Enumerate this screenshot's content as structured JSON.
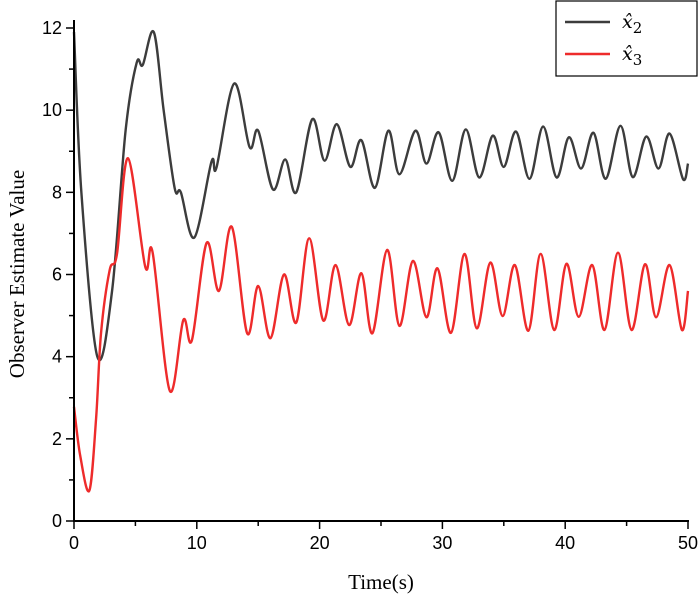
{
  "chart_data": {
    "type": "line",
    "title": "",
    "xlabel": "Time(s)",
    "ylabel": "Observer Estimate Value",
    "xlim": [
      0,
      50
    ],
    "ylim": [
      0,
      12
    ],
    "xticks": [
      0,
      10,
      20,
      30,
      40,
      50
    ],
    "yticks": [
      0,
      2,
      4,
      6,
      8,
      10,
      12
    ],
    "grid": false,
    "legend_position": "top-right",
    "series": [
      {
        "name": "x̂₂",
        "label_base": "x̂",
        "label_sub": "2",
        "color": "#3c3c3c",
        "points": [
          [
            0,
            11.9
          ],
          [
            0.6,
            8.0
          ],
          [
            1.9,
            4.0
          ],
          [
            3.1,
            5.6
          ],
          [
            4.2,
            9.5
          ],
          [
            5.1,
            11.15
          ],
          [
            5.6,
            11.1
          ],
          [
            6.5,
            11.9
          ],
          [
            7.3,
            10.0
          ],
          [
            8.2,
            8.1
          ],
          [
            8.7,
            8.0
          ],
          [
            9.8,
            6.9
          ],
          [
            11.2,
            8.75
          ],
          [
            11.6,
            8.6
          ],
          [
            13.05,
            10.65
          ],
          [
            14.3,
            9.1
          ],
          [
            15.0,
            9.5
          ],
          [
            16.2,
            8.07
          ],
          [
            17.2,
            8.8
          ],
          [
            18.1,
            8.0
          ],
          [
            19.4,
            9.78
          ],
          [
            20.4,
            8.77
          ],
          [
            21.4,
            9.66
          ],
          [
            22.5,
            8.62
          ],
          [
            23.4,
            9.27
          ],
          [
            24.5,
            8.11
          ],
          [
            25.6,
            9.5
          ],
          [
            26.5,
            8.44
          ],
          [
            27.8,
            9.5
          ],
          [
            28.7,
            8.7
          ],
          [
            29.7,
            9.46
          ],
          [
            30.8,
            8.28
          ],
          [
            31.9,
            9.53
          ],
          [
            33.0,
            8.36
          ],
          [
            34.1,
            9.38
          ],
          [
            35.0,
            8.62
          ],
          [
            36.0,
            9.48
          ],
          [
            37.1,
            8.33
          ],
          [
            38.2,
            9.6
          ],
          [
            39.3,
            8.36
          ],
          [
            40.3,
            9.34
          ],
          [
            41.3,
            8.58
          ],
          [
            42.3,
            9.45
          ],
          [
            43.3,
            8.33
          ],
          [
            44.5,
            9.62
          ],
          [
            45.5,
            8.37
          ],
          [
            46.6,
            9.36
          ],
          [
            47.6,
            8.58
          ],
          [
            48.5,
            9.43
          ],
          [
            49.6,
            8.32
          ],
          [
            50,
            8.7
          ]
        ]
      },
      {
        "name": "x̂₃",
        "label_base": "x̂",
        "label_sub": "3",
        "color": "#ee2b2b",
        "points": [
          [
            0,
            2.78
          ],
          [
            0.5,
            1.6
          ],
          [
            1.25,
            0.74
          ],
          [
            1.8,
            2.5
          ],
          [
            2.2,
            4.57
          ],
          [
            2.9,
            6.1
          ],
          [
            3.5,
            6.5
          ],
          [
            4.4,
            8.83
          ],
          [
            5.8,
            6.19
          ],
          [
            6.4,
            6.54
          ],
          [
            7.8,
            3.17
          ],
          [
            8.9,
            4.89
          ],
          [
            9.6,
            4.4
          ],
          [
            10.8,
            6.77
          ],
          [
            11.8,
            5.6
          ],
          [
            12.85,
            7.16
          ],
          [
            14.1,
            4.57
          ],
          [
            15.0,
            5.72
          ],
          [
            16.0,
            4.45
          ],
          [
            17.1,
            6.0
          ],
          [
            18.1,
            4.83
          ],
          [
            19.15,
            6.88
          ],
          [
            20.3,
            4.88
          ],
          [
            21.3,
            6.23
          ],
          [
            22.4,
            4.77
          ],
          [
            23.4,
            6.03
          ],
          [
            24.3,
            4.57
          ],
          [
            25.5,
            6.6
          ],
          [
            26.5,
            4.75
          ],
          [
            27.6,
            6.33
          ],
          [
            28.7,
            4.96
          ],
          [
            29.6,
            6.15
          ],
          [
            30.7,
            4.58
          ],
          [
            31.8,
            6.5
          ],
          [
            32.8,
            4.69
          ],
          [
            33.9,
            6.29
          ],
          [
            34.9,
            4.99
          ],
          [
            35.9,
            6.23
          ],
          [
            37.0,
            4.63
          ],
          [
            38.0,
            6.5
          ],
          [
            39.1,
            4.65
          ],
          [
            40.1,
            6.26
          ],
          [
            41.1,
            4.97
          ],
          [
            42.2,
            6.23
          ],
          [
            43.2,
            4.65
          ],
          [
            44.3,
            6.53
          ],
          [
            45.4,
            4.65
          ],
          [
            46.5,
            6.25
          ],
          [
            47.4,
            4.96
          ],
          [
            48.5,
            6.23
          ],
          [
            49.5,
            4.65
          ],
          [
            50,
            5.6
          ]
        ]
      }
    ]
  }
}
